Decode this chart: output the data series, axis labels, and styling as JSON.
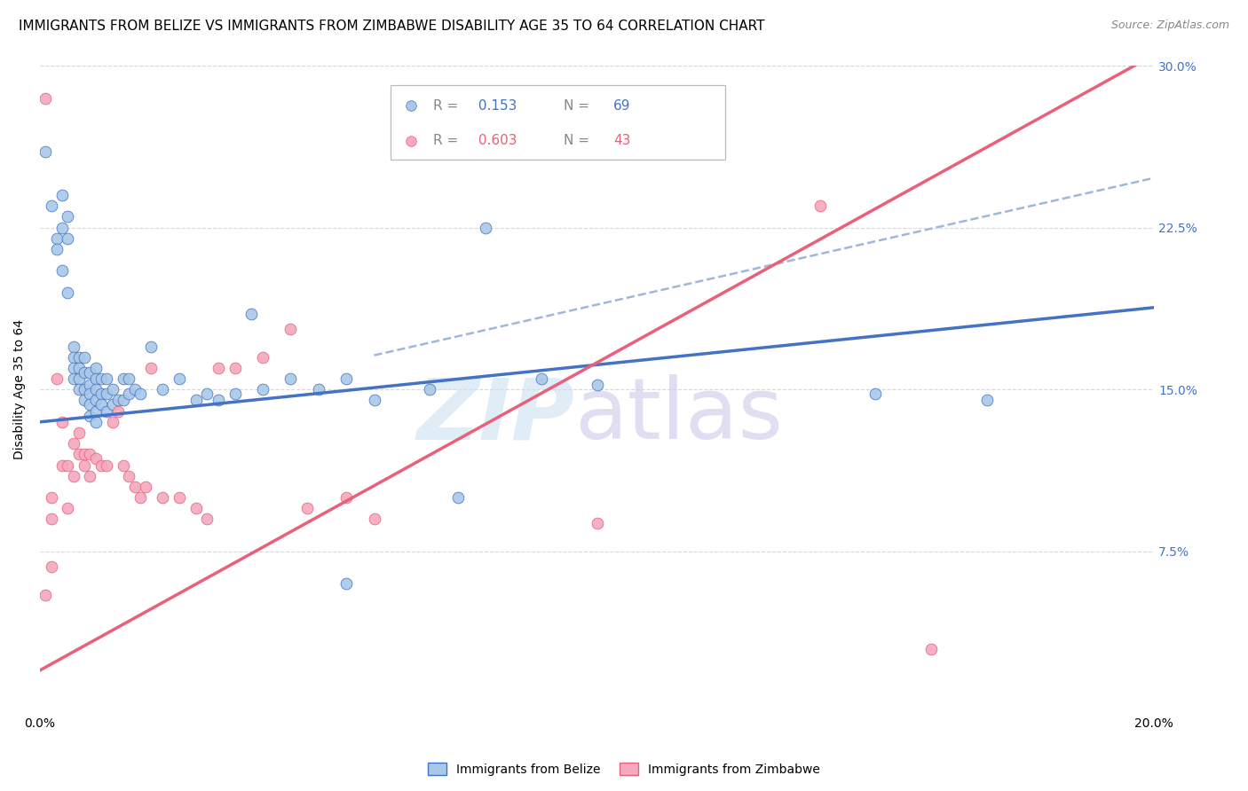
{
  "title": "IMMIGRANTS FROM BELIZE VS IMMIGRANTS FROM ZIMBABWE DISABILITY AGE 35 TO 64 CORRELATION CHART",
  "source": "Source: ZipAtlas.com",
  "ylabel": "Disability Age 35 to 64",
  "xlim": [
    0.0,
    0.2
  ],
  "ylim": [
    0.0,
    0.3
  ],
  "xtick_positions": [
    0.0,
    0.04,
    0.08,
    0.12,
    0.16,
    0.2
  ],
  "xtick_labels": [
    "0.0%",
    "",
    "",
    "",
    "",
    "20.0%"
  ],
  "ytick_positions": [
    0.0,
    0.075,
    0.15,
    0.225,
    0.3
  ],
  "ytick_labels": [
    "",
    "7.5%",
    "15.0%",
    "22.5%",
    "30.0%"
  ],
  "belize_R": 0.153,
  "belize_N": 69,
  "zimbabwe_R": 0.603,
  "zimbabwe_N": 43,
  "belize_color": "#a8c8e8",
  "zimbabwe_color": "#f5a8be",
  "belize_line_color": "#4472c4",
  "zimbabwe_line_color": "#e8607a",
  "belize_dashed_color": "#a0b8d8",
  "grid_color": "#d8d8d8",
  "background_color": "#ffffff",
  "belize_x": [
    0.001,
    0.002,
    0.003,
    0.003,
    0.004,
    0.004,
    0.004,
    0.005,
    0.005,
    0.005,
    0.006,
    0.006,
    0.006,
    0.006,
    0.007,
    0.007,
    0.007,
    0.007,
    0.008,
    0.008,
    0.008,
    0.008,
    0.009,
    0.009,
    0.009,
    0.009,
    0.009,
    0.01,
    0.01,
    0.01,
    0.01,
    0.01,
    0.01,
    0.011,
    0.011,
    0.011,
    0.012,
    0.012,
    0.012,
    0.013,
    0.013,
    0.014,
    0.015,
    0.015,
    0.016,
    0.016,
    0.017,
    0.018,
    0.02,
    0.022,
    0.025,
    0.028,
    0.03,
    0.032,
    0.035,
    0.038,
    0.04,
    0.045,
    0.05,
    0.055,
    0.06,
    0.07,
    0.08,
    0.09,
    0.1,
    0.15,
    0.17,
    0.055,
    0.075
  ],
  "belize_y": [
    0.26,
    0.235,
    0.22,
    0.215,
    0.24,
    0.225,
    0.205,
    0.23,
    0.22,
    0.195,
    0.17,
    0.165,
    0.16,
    0.155,
    0.165,
    0.16,
    0.155,
    0.15,
    0.165,
    0.158,
    0.15,
    0.145,
    0.158,
    0.152,
    0.148,
    0.143,
    0.138,
    0.16,
    0.155,
    0.15,
    0.145,
    0.14,
    0.135,
    0.155,
    0.148,
    0.143,
    0.155,
    0.148,
    0.14,
    0.15,
    0.143,
    0.145,
    0.155,
    0.145,
    0.155,
    0.148,
    0.15,
    0.148,
    0.17,
    0.15,
    0.155,
    0.145,
    0.148,
    0.145,
    0.148,
    0.185,
    0.15,
    0.155,
    0.15,
    0.155,
    0.145,
    0.15,
    0.225,
    0.155,
    0.152,
    0.148,
    0.145,
    0.06,
    0.1
  ],
  "zimbabwe_x": [
    0.001,
    0.001,
    0.002,
    0.002,
    0.003,
    0.004,
    0.004,
    0.005,
    0.005,
    0.006,
    0.006,
    0.007,
    0.007,
    0.008,
    0.008,
    0.009,
    0.009,
    0.01,
    0.011,
    0.012,
    0.013,
    0.014,
    0.015,
    0.016,
    0.017,
    0.018,
    0.019,
    0.02,
    0.022,
    0.025,
    0.028,
    0.03,
    0.032,
    0.035,
    0.04,
    0.045,
    0.048,
    0.055,
    0.06,
    0.1,
    0.14,
    0.16,
    0.002
  ],
  "zimbabwe_y": [
    0.055,
    0.285,
    0.1,
    0.09,
    0.155,
    0.135,
    0.115,
    0.115,
    0.095,
    0.125,
    0.11,
    0.13,
    0.12,
    0.12,
    0.115,
    0.12,
    0.11,
    0.118,
    0.115,
    0.115,
    0.135,
    0.14,
    0.115,
    0.11,
    0.105,
    0.1,
    0.105,
    0.16,
    0.1,
    0.1,
    0.095,
    0.09,
    0.16,
    0.16,
    0.165,
    0.178,
    0.095,
    0.1,
    0.09,
    0.088,
    0.235,
    0.03,
    0.068
  ],
  "title_fontsize": 11,
  "source_fontsize": 9,
  "axis_label_fontsize": 10,
  "tick_fontsize": 10,
  "legend_fontsize": 11,
  "watermark_zip_color": "#cce0f0",
  "watermark_atlas_color": "#d0c8e8"
}
